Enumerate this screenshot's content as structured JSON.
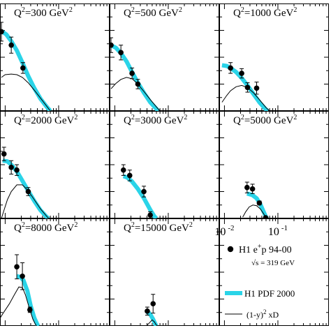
{
  "chart_data": {
    "type": "scatter",
    "x_scale": "log",
    "y_scale": "linear",
    "xlim": [
      0.008,
      0.9
    ],
    "ylim": [
      0,
      1.6
    ],
    "x_tick_labels": [
      {
        "base": "10",
        "exp": "-2",
        "value": 0.01
      },
      {
        "base": "10",
        "exp": "-1",
        "value": 0.1
      }
    ],
    "colors": {
      "pdf_band": "#2ad4e8",
      "data": "#000000",
      "xd_curve": "#000000"
    },
    "legend": {
      "data_label_main": "H1 e",
      "data_label_sup": "+",
      "data_label_tail": "p 94-00",
      "sqrt_s": "√s = 319 GeV",
      "band_label": "H1 PDF 2000",
      "curve_label_pre": "(1-y)",
      "curve_label_sup": "2",
      "curve_label_post": " xD"
    },
    "panels": [
      {
        "label_pre": "Q",
        "label_sup1": "2",
        "label_mid": "=300 GeV",
        "label_sup2": "2",
        "points": [
          {
            "x": 0.0085,
            "y": 1.18,
            "err": 0.14
          },
          {
            "x": 0.013,
            "y": 0.98,
            "err": 0.12
          },
          {
            "x": 0.0215,
            "y": 0.64,
            "err": 0.08
          }
        ],
        "band": [
          [
            0.0085,
            1.19
          ],
          [
            0.0105,
            1.14
          ],
          [
            0.013,
            1.04
          ],
          [
            0.0165,
            0.9
          ],
          [
            0.021,
            0.72
          ],
          [
            0.027,
            0.52
          ],
          [
            0.035,
            0.34
          ],
          [
            0.046,
            0.18
          ],
          [
            0.06,
            0.06
          ],
          [
            0.07,
            0.0
          ]
        ],
        "curve": [
          [
            0.0085,
            0.5
          ],
          [
            0.01,
            0.54
          ],
          [
            0.013,
            0.55
          ],
          [
            0.0165,
            0.54
          ],
          [
            0.021,
            0.5
          ],
          [
            0.027,
            0.42
          ],
          [
            0.035,
            0.31
          ],
          [
            0.046,
            0.19
          ],
          [
            0.06,
            0.07
          ],
          [
            0.07,
            0.0
          ]
        ]
      },
      {
        "label_pre": "Q",
        "label_sup1": "2",
        "label_mid": "=500 GeV",
        "label_sup2": "2",
        "points": [
          {
            "x": 0.0085,
            "y": 0.98,
            "err": 0.11
          },
          {
            "x": 0.013,
            "y": 0.87,
            "err": 0.11
          },
          {
            "x": 0.021,
            "y": 0.56,
            "err": 0.08
          },
          {
            "x": 0.027,
            "y": 0.4,
            "err": 0.07
          }
        ],
        "band": [
          [
            0.0085,
            0.98
          ],
          [
            0.0105,
            0.94
          ],
          [
            0.013,
            0.86
          ],
          [
            0.0165,
            0.74
          ],
          [
            0.021,
            0.58
          ],
          [
            0.027,
            0.42
          ],
          [
            0.035,
            0.27
          ],
          [
            0.046,
            0.13
          ],
          [
            0.06,
            0.03
          ],
          [
            0.065,
            0.0
          ]
        ],
        "curve": [
          [
            0.0085,
            0.33
          ],
          [
            0.0105,
            0.41
          ],
          [
            0.013,
            0.47
          ],
          [
            0.0165,
            0.5
          ],
          [
            0.021,
            0.48
          ],
          [
            0.027,
            0.4
          ],
          [
            0.035,
            0.29
          ],
          [
            0.046,
            0.17
          ],
          [
            0.06,
            0.06
          ],
          [
            0.07,
            0.0
          ]
        ]
      },
      {
        "label_pre": "Q",
        "label_sup1": "2",
        "label_mid": "=1000 GeV",
        "label_sup2": "2",
        "points": [
          {
            "x": 0.013,
            "y": 0.64,
            "err": 0.08
          },
          {
            "x": 0.021,
            "y": 0.56,
            "err": 0.07
          },
          {
            "x": 0.027,
            "y": 0.35,
            "err": 0.07
          },
          {
            "x": 0.04,
            "y": 0.34,
            "err": 0.09
          }
        ],
        "band": [
          [
            0.009,
            0.68
          ],
          [
            0.011,
            0.67
          ],
          [
            0.013,
            0.64
          ],
          [
            0.0165,
            0.58
          ],
          [
            0.021,
            0.49
          ],
          [
            0.027,
            0.38
          ],
          [
            0.035,
            0.25
          ],
          [
            0.046,
            0.12
          ],
          [
            0.06,
            0.02
          ],
          [
            0.065,
            0.0
          ]
        ],
        "curve": [
          [
            0.009,
            0.13
          ],
          [
            0.011,
            0.23
          ],
          [
            0.013,
            0.3
          ],
          [
            0.0165,
            0.36
          ],
          [
            0.021,
            0.38
          ],
          [
            0.027,
            0.35
          ],
          [
            0.035,
            0.27
          ],
          [
            0.046,
            0.16
          ],
          [
            0.06,
            0.05
          ],
          [
            0.07,
            0.0
          ]
        ]
      },
      {
        "label_pre": "Q",
        "label_sup1": "2",
        "label_mid": "=2000 GeV",
        "label_sup2": "2",
        "points": [
          {
            "x": 0.0095,
            "y": 0.96,
            "err": 0.1
          },
          {
            "x": 0.013,
            "y": 0.76,
            "err": 0.1
          },
          {
            "x": 0.0165,
            "y": 0.72,
            "err": 0.08
          },
          {
            "x": 0.027,
            "y": 0.4,
            "err": 0.06
          }
        ],
        "band": [
          [
            0.009,
            0.86
          ],
          [
            0.011,
            0.85
          ],
          [
            0.013,
            0.8
          ],
          [
            0.0165,
            0.7
          ],
          [
            0.021,
            0.56
          ],
          [
            0.027,
            0.41
          ],
          [
            0.035,
            0.26
          ],
          [
            0.046,
            0.12
          ],
          [
            0.06,
            0.02
          ],
          [
            0.065,
            0.0
          ]
        ],
        "curve": [
          [
            0.0085,
            0.0
          ],
          [
            0.0095,
            0.12
          ],
          [
            0.011,
            0.28
          ],
          [
            0.013,
            0.4
          ],
          [
            0.0165,
            0.5
          ],
          [
            0.021,
            0.5
          ],
          [
            0.027,
            0.41
          ],
          [
            0.035,
            0.28
          ],
          [
            0.046,
            0.14
          ],
          [
            0.06,
            0.03
          ],
          [
            0.065,
            0.0
          ]
        ]
      },
      {
        "label_pre": "Q",
        "label_sup1": "2",
        "label_mid": "=3000 GeV",
        "label_sup2": "2",
        "points": [
          {
            "x": 0.0145,
            "y": 0.72,
            "err": 0.08
          },
          {
            "x": 0.019,
            "y": 0.64,
            "err": 0.08
          },
          {
            "x": 0.035,
            "y": 0.4,
            "err": 0.08
          },
          {
            "x": 0.046,
            "y": 0.05,
            "err": 0.05
          }
        ],
        "band": [
          [
            0.0145,
            0.63
          ],
          [
            0.017,
            0.61
          ],
          [
            0.021,
            0.55
          ],
          [
            0.027,
            0.44
          ],
          [
            0.035,
            0.3
          ],
          [
            0.046,
            0.13
          ],
          [
            0.055,
            0.03
          ],
          [
            0.06,
            0.0
          ]
        ],
        "curve": []
      },
      {
        "label_pre": "Q",
        "label_sup1": "2",
        "label_mid": "=5000 GeV",
        "label_sup2": "2",
        "points": [
          {
            "x": 0.0265,
            "y": 0.46,
            "err": 0.08
          },
          {
            "x": 0.0335,
            "y": 0.44,
            "err": 0.07
          },
          {
            "x": 0.045,
            "y": 0.23,
            "err": 0.03
          },
          {
            "x": 0.059,
            "y": 0.01,
            "err": 0.02
          }
        ],
        "band": [
          [
            0.0265,
            0.37
          ],
          [
            0.033,
            0.35
          ],
          [
            0.04,
            0.3
          ],
          [
            0.047,
            0.21
          ],
          [
            0.054,
            0.1
          ],
          [
            0.06,
            0.02
          ],
          [
            0.063,
            0.0
          ]
        ],
        "curve": [
          [
            0.022,
            0.02
          ],
          [
            0.025,
            0.1
          ],
          [
            0.029,
            0.17
          ],
          [
            0.034,
            0.2
          ],
          [
            0.04,
            0.19
          ],
          [
            0.047,
            0.14
          ],
          [
            0.054,
            0.07
          ],
          [
            0.06,
            0.01
          ],
          [
            0.063,
            0.0
          ]
        ]
      },
      {
        "label_pre": "Q",
        "label_sup1": "2",
        "label_mid": "=8000 GeV",
        "label_sup2": "2",
        "points": [
          {
            "x": 0.0165,
            "y": 0.88,
            "err": 0.18
          },
          {
            "x": 0.021,
            "y": 0.74,
            "err": 0.2
          },
          {
            "x": 0.029,
            "y": 0.24,
            "err": 0.04
          }
        ],
        "band": [
          [
            0.0165,
            0.74
          ],
          [
            0.019,
            0.73
          ],
          [
            0.022,
            0.68
          ],
          [
            0.026,
            0.52
          ],
          [
            0.03,
            0.3
          ],
          [
            0.035,
            0.12
          ],
          [
            0.04,
            0.02
          ],
          [
            0.042,
            0.0
          ]
        ],
        "curve": [
          [
            0.007,
            0.04
          ],
          [
            0.009,
            0.18
          ],
          [
            0.012,
            0.33
          ],
          [
            0.015,
            0.47
          ],
          [
            0.018,
            0.58
          ],
          [
            0.021,
            0.57
          ],
          [
            0.024,
            0.46
          ],
          [
            0.028,
            0.28
          ],
          [
            0.033,
            0.1
          ],
          [
            0.037,
            0.02
          ],
          [
            0.039,
            0.0
          ]
        ]
      },
      {
        "label_pre": "Q",
        "label_sup1": "2",
        "label_mid": "=15000 GeV",
        "label_sup2": "2",
        "points": [
          {
            "x": 0.0405,
            "y": 0.22,
            "err": 0.06
          },
          {
            "x": 0.052,
            "y": 0.33,
            "err": 0.14
          }
        ],
        "band": [
          [
            0.039,
            0.21
          ],
          [
            0.043,
            0.2
          ],
          [
            0.047,
            0.16
          ],
          [
            0.052,
            0.1
          ],
          [
            0.057,
            0.03
          ],
          [
            0.06,
            0.0
          ]
        ],
        "curve": [
          [
            0.04,
            0.01
          ],
          [
            0.045,
            0.05
          ],
          [
            0.05,
            0.09
          ],
          [
            0.055,
            0.06
          ],
          [
            0.06,
            0.01
          ],
          [
            0.062,
            0.0
          ]
        ]
      }
    ]
  }
}
